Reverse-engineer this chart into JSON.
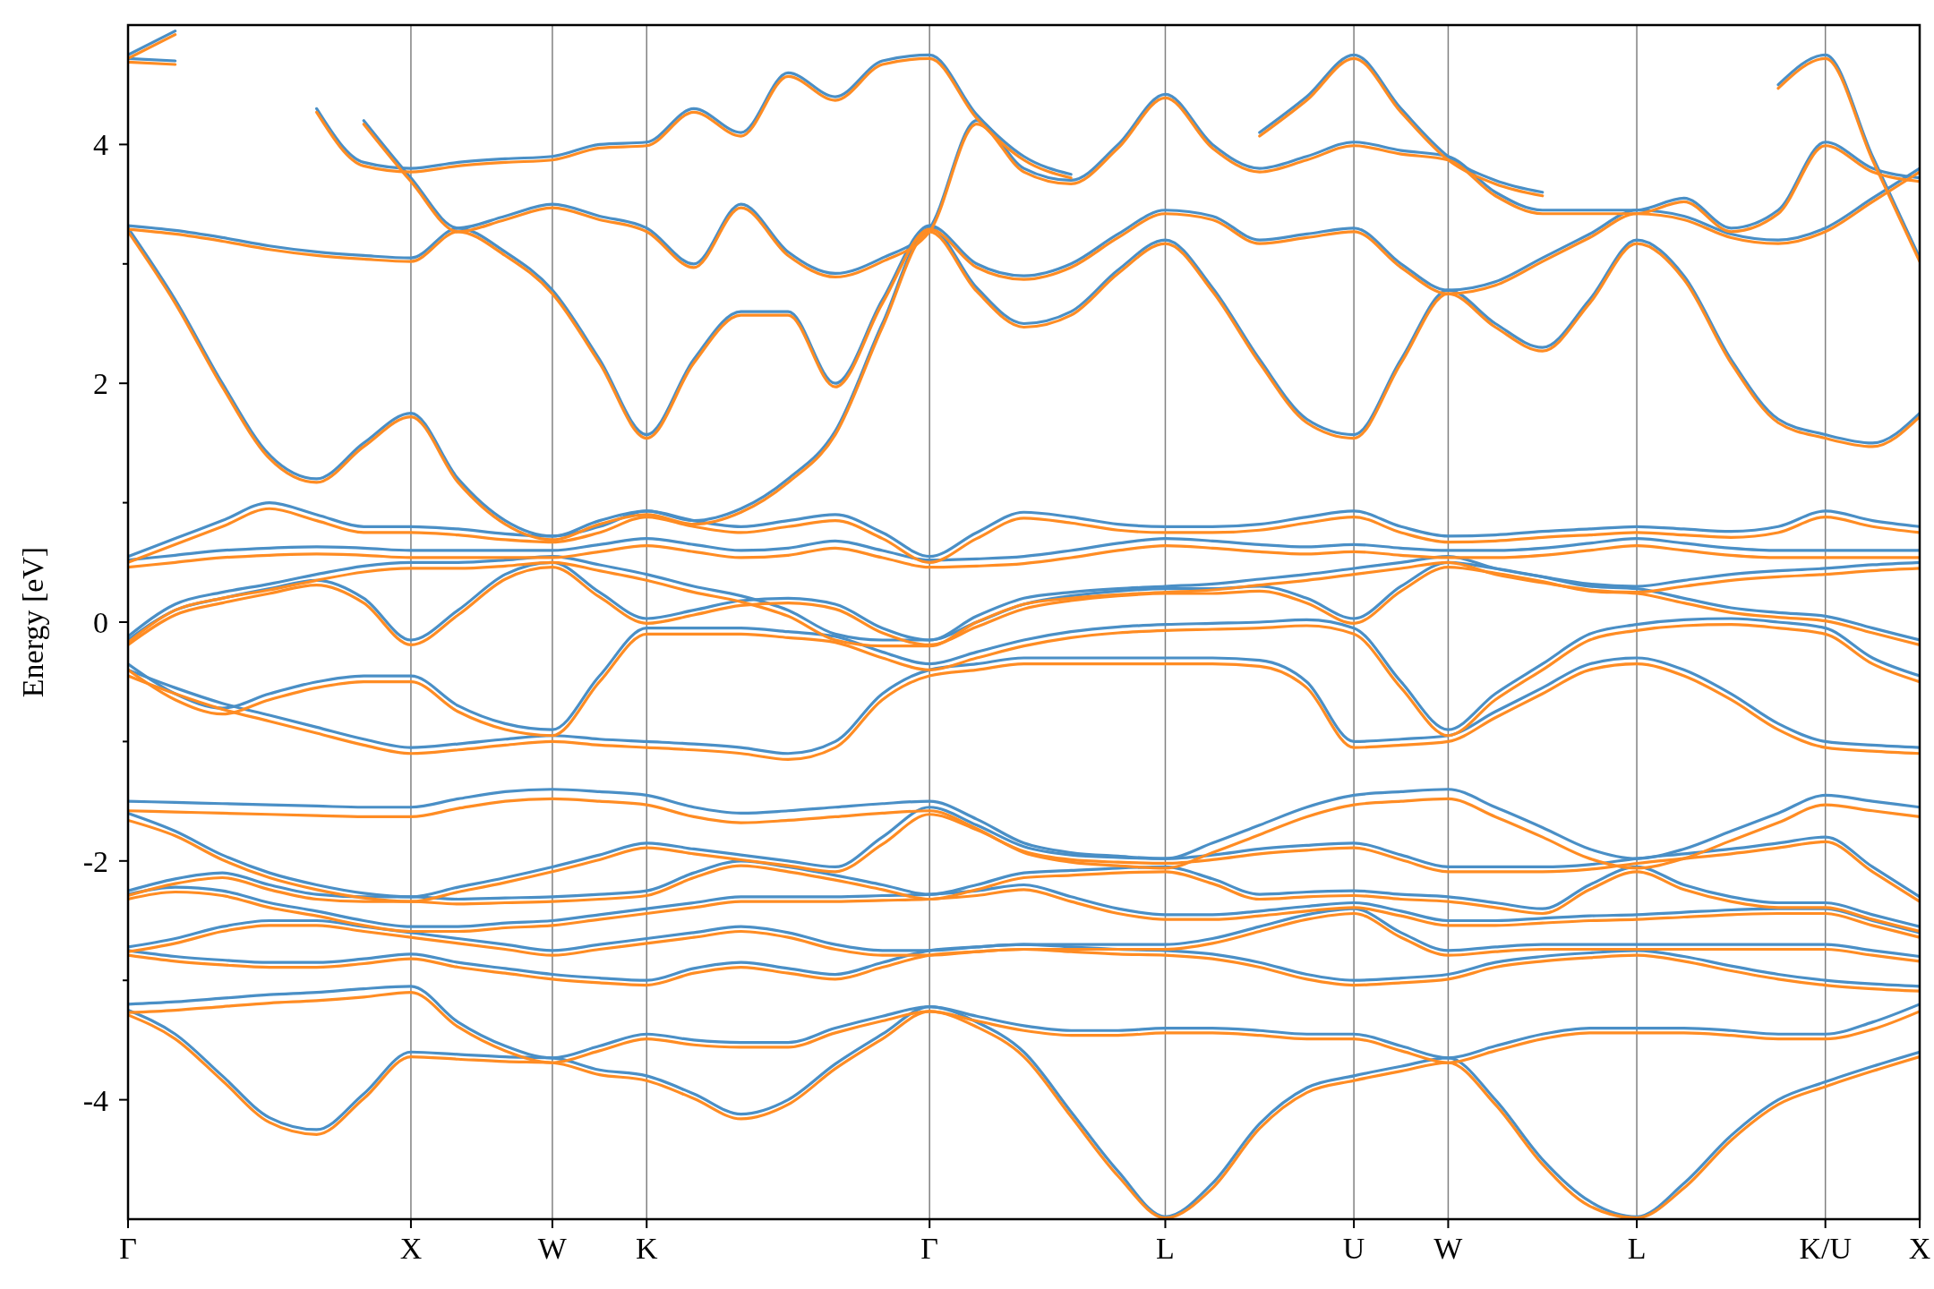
{
  "chart_data": {
    "type": "line",
    "ylabel": "Energy [eV]",
    "categories": [
      "Γ",
      null,
      null,
      null,
      null,
      null,
      "X",
      null,
      null,
      "W",
      null,
      "K",
      null,
      null,
      null,
      null,
      null,
      "Γ",
      null,
      null,
      null,
      null,
      "L",
      null,
      null,
      null,
      "U",
      null,
      "W",
      null,
      null,
      null,
      "L",
      null,
      null,
      null,
      "K/U",
      null,
      "X"
    ],
    "ylim": [
      -5,
      5
    ],
    "yticks": [
      -4,
      {
        "value": -3,
        "label": null
      },
      -2,
      {
        "value": -1,
        "label": null
      },
      0,
      {
        "value": 1,
        "label": null
      },
      2,
      {
        "value": 3,
        "label": null
      },
      4
    ],
    "grid": "x",
    "line_style": "solid",
    "marker": "none",
    "series": [
      {
        "color": "#4a8fc6",
        "values": [
          -3.25,
          -3.45,
          -3.8,
          -4.15,
          -4.25,
          -3.95,
          -3.6,
          -3.62,
          -3.64,
          -3.65,
          -3.75,
          -3.8,
          -3.95,
          -4.12,
          -4.0,
          -3.7,
          -3.45,
          -3.22,
          -3.35,
          -3.6,
          -4.1,
          -4.6,
          -4.98,
          -4.7,
          -4.2,
          -3.9,
          -3.8,
          -3.72,
          -3.65,
          -4.0,
          -4.5,
          -4.85,
          -4.98,
          -4.7,
          -4.3,
          -4.0,
          -3.85,
          -3.72,
          -3.6
        ]
      },
      {
        "color": "#4a8fc6",
        "values": [
          -3.2,
          -3.18,
          -3.15,
          -3.12,
          -3.1,
          -3.07,
          -3.05,
          -3.35,
          -3.55,
          -3.65,
          -3.55,
          -3.45,
          -3.5,
          -3.52,
          -3.52,
          -3.4,
          -3.3,
          -3.22,
          -3.3,
          -3.38,
          -3.42,
          -3.42,
          -3.4,
          -3.4,
          -3.42,
          -3.45,
          -3.45,
          -3.55,
          -3.65,
          -3.55,
          -3.45,
          -3.4,
          -3.4,
          -3.4,
          -3.42,
          -3.45,
          -3.45,
          -3.35,
          -3.2
        ]
      },
      {
        "color": "#4a8fc6",
        "values": [
          -2.75,
          -2.8,
          -2.83,
          -2.85,
          -2.85,
          -2.82,
          -2.78,
          -2.85,
          -2.9,
          -2.95,
          -2.98,
          -3.0,
          -2.9,
          -2.85,
          -2.9,
          -2.95,
          -2.85,
          -2.75,
          -2.72,
          -2.7,
          -2.72,
          -2.74,
          -2.75,
          -2.78,
          -2.85,
          -2.95,
          -3.0,
          -2.98,
          -2.95,
          -2.85,
          -2.8,
          -2.77,
          -2.75,
          -2.8,
          -2.88,
          -2.95,
          -3.0,
          -3.03,
          -3.05
        ]
      },
      {
        "color": "#4a8fc6",
        "values": [
          -2.72,
          -2.65,
          -2.55,
          -2.5,
          -2.5,
          -2.55,
          -2.6,
          -2.65,
          -2.7,
          -2.75,
          -2.7,
          -2.65,
          -2.6,
          -2.55,
          -2.6,
          -2.7,
          -2.75,
          -2.75,
          -2.72,
          -2.7,
          -2.7,
          -2.7,
          -2.7,
          -2.65,
          -2.55,
          -2.45,
          -2.4,
          -2.6,
          -2.75,
          -2.72,
          -2.7,
          -2.7,
          -2.7,
          -2.7,
          -2.7,
          -2.7,
          -2.7,
          -2.75,
          -2.8
        ]
      },
      {
        "color": "#4a8fc6",
        "values": [
          -2.28,
          -2.22,
          -2.25,
          -2.35,
          -2.42,
          -2.5,
          -2.55,
          -2.55,
          -2.52,
          -2.5,
          -2.45,
          -2.4,
          -2.35,
          -2.3,
          -2.3,
          -2.3,
          -2.29,
          -2.28,
          -2.25,
          -2.2,
          -2.3,
          -2.4,
          -2.45,
          -2.45,
          -2.42,
          -2.38,
          -2.35,
          -2.42,
          -2.5,
          -2.5,
          -2.48,
          -2.46,
          -2.45,
          -2.43,
          -2.41,
          -2.4,
          -2.4,
          -2.5,
          -2.6
        ]
      },
      {
        "color": "#4a8fc6",
        "values": [
          -2.25,
          -2.15,
          -2.1,
          -2.2,
          -2.28,
          -2.3,
          -2.3,
          -2.32,
          -2.31,
          -2.3,
          -2.28,
          -2.25,
          -2.1,
          -2.0,
          -2.05,
          -2.12,
          -2.2,
          -2.28,
          -2.2,
          -2.1,
          -2.08,
          -2.06,
          -2.05,
          -2.15,
          -2.28,
          -2.26,
          -2.25,
          -2.28,
          -2.3,
          -2.35,
          -2.4,
          -2.2,
          -2.05,
          -2.2,
          -2.3,
          -2.35,
          -2.35,
          -2.45,
          -2.55
        ]
      },
      {
        "color": "#4a8fc6",
        "values": [
          -1.6,
          -1.75,
          -1.95,
          -2.1,
          -2.2,
          -2.27,
          -2.3,
          -2.22,
          -2.14,
          -2.05,
          -1.95,
          -1.85,
          -1.9,
          -1.95,
          -2.0,
          -2.05,
          -1.8,
          -1.55,
          -1.7,
          -1.88,
          -1.95,
          -1.97,
          -1.98,
          -1.95,
          -1.9,
          -1.87,
          -1.85,
          -1.95,
          -2.05,
          -2.05,
          -2.05,
          -2.03,
          -1.98,
          -1.94,
          -1.9,
          -1.85,
          -1.8,
          -2.05,
          -2.3
        ]
      },
      {
        "color": "#4a8fc6",
        "values": [
          -1.5,
          -1.51,
          -1.52,
          -1.53,
          -1.54,
          -1.55,
          -1.55,
          -1.48,
          -1.42,
          -1.4,
          -1.42,
          -1.45,
          -1.55,
          -1.6,
          -1.58,
          -1.55,
          -1.52,
          -1.5,
          -1.65,
          -1.85,
          -1.93,
          -1.96,
          -1.98,
          -1.85,
          -1.7,
          -1.55,
          -1.45,
          -1.42,
          -1.4,
          -1.55,
          -1.72,
          -1.9,
          -1.98,
          -1.9,
          -1.75,
          -1.6,
          -1.45,
          -1.5,
          -1.55
        ]
      },
      {
        "color": "#4a8fc6",
        "values": [
          -0.4,
          -0.55,
          -0.68,
          -0.78,
          -0.88,
          -0.98,
          -1.05,
          -1.02,
          -0.98,
          -0.95,
          -0.98,
          -1.0,
          -1.02,
          -1.05,
          -1.1,
          -1.0,
          -0.6,
          -0.4,
          -0.35,
          -0.3,
          -0.3,
          -0.3,
          -0.3,
          -0.3,
          -0.32,
          -0.5,
          -1.0,
          -0.98,
          -0.95,
          -0.75,
          -0.55,
          -0.35,
          -0.3,
          -0.4,
          -0.6,
          -0.85,
          -1.0,
          -1.03,
          -1.05
        ]
      },
      {
        "color": "#4a8fc6",
        "values": [
          -0.35,
          -0.6,
          -0.72,
          -0.6,
          -0.5,
          -0.45,
          -0.45,
          -0.7,
          -0.85,
          -0.9,
          -0.45,
          -0.05,
          -0.05,
          -0.05,
          -0.08,
          -0.12,
          -0.25,
          -0.35,
          -0.25,
          -0.15,
          -0.08,
          -0.04,
          -0.02,
          -0.01,
          0.0,
          0.02,
          -0.05,
          -0.5,
          -0.9,
          -0.6,
          -0.35,
          -0.1,
          -0.02,
          0.02,
          0.03,
          0.0,
          -0.05,
          -0.3,
          -0.45
        ]
      },
      {
        "color": "#4a8fc6",
        "values": [
          -0.15,
          0.1,
          0.2,
          0.28,
          0.35,
          0.2,
          -0.15,
          0.1,
          0.4,
          0.5,
          0.25,
          0.03,
          0.1,
          0.18,
          0.2,
          0.15,
          -0.05,
          -0.15,
          0.0,
          0.15,
          0.22,
          0.26,
          0.28,
          0.28,
          0.3,
          0.2,
          0.03,
          0.3,
          0.5,
          0.45,
          0.38,
          0.3,
          0.28,
          0.2,
          0.12,
          0.08,
          0.05,
          -0.05,
          -0.15
        ]
      },
      {
        "color": "#4a8fc6",
        "values": [
          -0.12,
          0.15,
          0.25,
          0.32,
          0.4,
          0.47,
          0.5,
          0.5,
          0.52,
          0.55,
          0.48,
          0.4,
          0.3,
          0.22,
          0.1,
          -0.1,
          -0.15,
          -0.15,
          0.05,
          0.2,
          0.25,
          0.28,
          0.3,
          0.32,
          0.36,
          0.4,
          0.45,
          0.5,
          0.55,
          0.45,
          0.38,
          0.32,
          0.3,
          0.35,
          0.4,
          0.43,
          0.45,
          0.48,
          0.5
        ]
      },
      {
        "color": "#4a8fc6",
        "values": [
          0.52,
          0.56,
          0.6,
          0.62,
          0.63,
          0.62,
          0.6,
          0.6,
          0.6,
          0.6,
          0.65,
          0.7,
          0.65,
          0.6,
          0.62,
          0.68,
          0.6,
          0.52,
          0.53,
          0.55,
          0.6,
          0.66,
          0.7,
          0.68,
          0.65,
          0.63,
          0.65,
          0.62,
          0.6,
          0.6,
          0.62,
          0.66,
          0.7,
          0.66,
          0.62,
          0.6,
          0.6,
          0.6,
          0.6
        ]
      },
      {
        "color": "#4a8fc6",
        "values": [
          0.55,
          0.7,
          0.85,
          1.0,
          0.9,
          0.8,
          0.8,
          0.78,
          0.74,
          0.72,
          0.8,
          0.93,
          0.85,
          0.8,
          0.85,
          0.9,
          0.75,
          0.55,
          0.75,
          0.92,
          0.88,
          0.82,
          0.8,
          0.8,
          0.82,
          0.88,
          0.93,
          0.8,
          0.72,
          0.73,
          0.76,
          0.78,
          0.8,
          0.78,
          0.76,
          0.8,
          0.93,
          0.85,
          0.8
        ]
      },
      {
        "color": "#4a8fc6",
        "values": [
          3.3,
          2.7,
          2.0,
          1.4,
          1.2,
          1.5,
          1.75,
          1.2,
          0.85,
          0.72,
          0.85,
          0.93,
          0.85,
          0.95,
          1.2,
          1.6,
          2.5,
          3.3,
          2.8,
          2.5,
          2.6,
          2.95,
          3.2,
          2.8,
          2.2,
          1.7,
          1.57,
          2.2,
          2.78,
          2.5,
          2.3,
          2.7,
          3.2,
          2.9,
          2.2,
          1.7,
          1.57,
          1.5,
          1.75
        ]
      },
      {
        "color": "#4a8fc6",
        "values": [
          3.32,
          3.28,
          3.22,
          3.15,
          3.1,
          3.07,
          3.05,
          3.3,
          3.1,
          2.78,
          2.2,
          1.57,
          2.2,
          2.6,
          2.6,
          2.0,
          2.7,
          3.32,
          3.0,
          2.9,
          3.0,
          3.25,
          3.45,
          3.4,
          3.2,
          3.25,
          3.3,
          3.0,
          2.78,
          2.85,
          3.05,
          3.25,
          3.45,
          3.4,
          3.25,
          3.2,
          3.3,
          3.55,
          3.8
        ]
      },
      {
        "color": "#4a8fc6",
        "values": [
          4.72,
          4.7,
          null,
          null,
          null,
          4.2,
          3.72,
          3.3,
          3.4,
          3.5,
          3.4,
          3.3,
          3.0,
          3.5,
          3.1,
          2.92,
          3.05,
          3.3,
          4.2,
          3.8,
          3.7,
          4.0,
          4.42,
          4.0,
          3.8,
          3.9,
          4.02,
          3.95,
          3.9,
          3.6,
          3.45,
          3.45,
          3.45,
          3.55,
          3.3,
          3.45,
          4.02,
          3.8,
          3.72
        ]
      },
      {
        "color": "#4a8fc6",
        "values": [
          4.75,
          4.95,
          null,
          null,
          4.3,
          3.85,
          3.8,
          3.85,
          3.88,
          3.9,
          4.0,
          4.02,
          4.3,
          4.1,
          4.6,
          4.4,
          4.7,
          4.75,
          4.25,
          3.9,
          3.75,
          null,
          null,
          null,
          4.1,
          4.4,
          4.75,
          4.3,
          3.9,
          3.7,
          3.6,
          null,
          null,
          null,
          null,
          4.5,
          4.75,
          3.9,
          3.05
        ]
      },
      {
        "color": "#ff8c23",
        "values": [
          -3.29,
          -3.49,
          -3.84,
          -4.19,
          -4.29,
          -3.99,
          -3.64,
          -3.66,
          -3.68,
          -3.69,
          -3.79,
          -3.84,
          -3.99,
          -4.16,
          -4.04,
          -3.74,
          -3.49,
          -3.26,
          -3.39,
          -3.64,
          -4.14,
          -4.64,
          -4.99,
          -4.74,
          -4.24,
          -3.94,
          -3.84,
          -3.76,
          -3.69,
          -4.04,
          -4.54,
          -4.89,
          -4.99,
          -4.74,
          -4.34,
          -4.04,
          -3.89,
          -3.76,
          -3.64
        ]
      },
      {
        "color": "#ff8c23",
        "values": [
          -3.27,
          -3.25,
          -3.22,
          -3.19,
          -3.17,
          -3.14,
          -3.1,
          -3.39,
          -3.59,
          -3.69,
          -3.59,
          -3.49,
          -3.54,
          -3.56,
          -3.56,
          -3.44,
          -3.34,
          -3.26,
          -3.34,
          -3.42,
          -3.46,
          -3.46,
          -3.44,
          -3.44,
          -3.46,
          -3.49,
          -3.49,
          -3.59,
          -3.69,
          -3.59,
          -3.49,
          -3.44,
          -3.44,
          -3.44,
          -3.46,
          -3.49,
          -3.49,
          -3.41,
          -3.26
        ]
      },
      {
        "color": "#ff8c23",
        "values": [
          -2.79,
          -2.84,
          -2.87,
          -2.89,
          -2.89,
          -2.86,
          -2.82,
          -2.89,
          -2.94,
          -2.99,
          -3.02,
          -3.04,
          -2.94,
          -2.89,
          -2.94,
          -2.99,
          -2.89,
          -2.79,
          -2.76,
          -2.74,
          -2.76,
          -2.78,
          -2.79,
          -2.82,
          -2.89,
          -2.99,
          -3.04,
          -3.02,
          -2.99,
          -2.89,
          -2.84,
          -2.81,
          -2.79,
          -2.84,
          -2.92,
          -2.99,
          -3.04,
          -3.07,
          -3.09
        ]
      },
      {
        "color": "#ff8c23",
        "values": [
          -2.76,
          -2.69,
          -2.59,
          -2.54,
          -2.54,
          -2.59,
          -2.64,
          -2.69,
          -2.74,
          -2.79,
          -2.74,
          -2.69,
          -2.64,
          -2.59,
          -2.64,
          -2.74,
          -2.79,
          -2.79,
          -2.76,
          -2.74,
          -2.74,
          -2.74,
          -2.74,
          -2.69,
          -2.59,
          -2.49,
          -2.44,
          -2.64,
          -2.79,
          -2.76,
          -2.74,
          -2.74,
          -2.74,
          -2.74,
          -2.74,
          -2.74,
          -2.74,
          -2.79,
          -2.84
        ]
      },
      {
        "color": "#ff8c23",
        "values": [
          -2.32,
          -2.26,
          -2.29,
          -2.39,
          -2.46,
          -2.54,
          -2.59,
          -2.59,
          -2.56,
          -2.54,
          -2.49,
          -2.44,
          -2.39,
          -2.34,
          -2.34,
          -2.34,
          -2.33,
          -2.32,
          -2.29,
          -2.24,
          -2.34,
          -2.44,
          -2.49,
          -2.49,
          -2.46,
          -2.42,
          -2.39,
          -2.46,
          -2.54,
          -2.54,
          -2.52,
          -2.5,
          -2.49,
          -2.47,
          -2.45,
          -2.44,
          -2.44,
          -2.54,
          -2.64
        ]
      },
      {
        "color": "#ff8c23",
        "values": [
          -2.29,
          -2.19,
          -2.14,
          -2.24,
          -2.32,
          -2.34,
          -2.34,
          -2.36,
          -2.35,
          -2.34,
          -2.32,
          -2.29,
          -2.14,
          -2.04,
          -2.09,
          -2.16,
          -2.24,
          -2.32,
          -2.24,
          -2.14,
          -2.12,
          -2.1,
          -2.09,
          -2.19,
          -2.32,
          -2.3,
          -2.29,
          -2.32,
          -2.34,
          -2.39,
          -2.44,
          -2.24,
          -2.09,
          -2.24,
          -2.34,
          -2.39,
          -2.39,
          -2.49,
          -2.59
        ]
      },
      {
        "color": "#ff8c23",
        "values": [
          -1.66,
          -1.79,
          -1.99,
          -2.14,
          -2.24,
          -2.31,
          -2.34,
          -2.26,
          -2.18,
          -2.09,
          -1.99,
          -1.89,
          -1.94,
          -1.99,
          -2.04,
          -2.09,
          -1.86,
          -1.61,
          -1.74,
          -1.92,
          -1.99,
          -2.01,
          -2.02,
          -1.99,
          -1.94,
          -1.91,
          -1.89,
          -1.99,
          -2.09,
          -2.09,
          -2.09,
          -2.07,
          -2.02,
          -1.98,
          -1.94,
          -1.89,
          -1.84,
          -2.09,
          -2.34
        ]
      },
      {
        "color": "#ff8c23",
        "values": [
          -1.58,
          -1.59,
          -1.6,
          -1.61,
          -1.62,
          -1.63,
          -1.63,
          -1.56,
          -1.5,
          -1.48,
          -1.5,
          -1.53,
          -1.63,
          -1.68,
          -1.66,
          -1.63,
          -1.6,
          -1.58,
          -1.73,
          -1.93,
          -2.01,
          -2.04,
          -2.06,
          -1.93,
          -1.78,
          -1.63,
          -1.53,
          -1.5,
          -1.48,
          -1.63,
          -1.8,
          -1.98,
          -2.06,
          -1.98,
          -1.83,
          -1.68,
          -1.53,
          -1.58,
          -1.63
        ]
      },
      {
        "color": "#ff8c23",
        "values": [
          -0.45,
          -0.6,
          -0.73,
          -0.83,
          -0.93,
          -1.03,
          -1.1,
          -1.07,
          -1.03,
          -1.0,
          -1.03,
          -1.05,
          -1.07,
          -1.1,
          -1.15,
          -1.05,
          -0.65,
          -0.45,
          -0.4,
          -0.35,
          -0.35,
          -0.35,
          -0.35,
          -0.35,
          -0.37,
          -0.55,
          -1.05,
          -1.03,
          -1.0,
          -0.8,
          -0.6,
          -0.4,
          -0.35,
          -0.45,
          -0.65,
          -0.9,
          -1.05,
          -1.08,
          -1.1
        ]
      },
      {
        "color": "#ff8c23",
        "values": [
          -0.4,
          -0.65,
          -0.77,
          -0.65,
          -0.55,
          -0.5,
          -0.5,
          -0.75,
          -0.9,
          -0.95,
          -0.5,
          -0.1,
          -0.1,
          -0.1,
          -0.13,
          -0.17,
          -0.3,
          -0.4,
          -0.3,
          -0.2,
          -0.13,
          -0.09,
          -0.07,
          -0.06,
          -0.05,
          -0.03,
          -0.1,
          -0.55,
          -0.95,
          -0.65,
          -0.4,
          -0.15,
          -0.07,
          -0.03,
          -0.02,
          -0.05,
          -0.1,
          -0.35,
          -0.5
        ]
      },
      {
        "color": "#ff8c23",
        "values": [
          -0.19,
          0.06,
          0.16,
          0.24,
          0.31,
          0.16,
          -0.19,
          0.06,
          0.36,
          0.46,
          0.21,
          -0.01,
          0.06,
          0.14,
          0.16,
          0.11,
          -0.09,
          -0.19,
          -0.04,
          0.11,
          0.18,
          0.22,
          0.24,
          0.24,
          0.26,
          0.16,
          -0.01,
          0.26,
          0.46,
          0.41,
          0.34,
          0.26,
          0.24,
          0.16,
          0.08,
          0.04,
          0.01,
          -0.09,
          -0.19
        ]
      },
      {
        "color": "#ff8c23",
        "values": [
          -0.17,
          0.1,
          0.2,
          0.27,
          0.35,
          0.42,
          0.45,
          0.45,
          0.47,
          0.5,
          0.43,
          0.35,
          0.25,
          0.17,
          0.05,
          -0.15,
          -0.2,
          -0.2,
          0.0,
          0.15,
          0.2,
          0.23,
          0.25,
          0.27,
          0.31,
          0.35,
          0.4,
          0.45,
          0.5,
          0.4,
          0.33,
          0.27,
          0.25,
          0.3,
          0.35,
          0.38,
          0.4,
          0.43,
          0.45
        ]
      },
      {
        "color": "#ff8c23",
        "values": [
          0.46,
          0.5,
          0.54,
          0.56,
          0.57,
          0.56,
          0.54,
          0.54,
          0.54,
          0.54,
          0.59,
          0.64,
          0.59,
          0.54,
          0.56,
          0.62,
          0.54,
          0.46,
          0.47,
          0.49,
          0.54,
          0.6,
          0.64,
          0.62,
          0.59,
          0.57,
          0.59,
          0.56,
          0.54,
          0.54,
          0.56,
          0.6,
          0.64,
          0.6,
          0.56,
          0.54,
          0.54,
          0.54,
          0.54
        ]
      },
      {
        "color": "#ff8c23",
        "values": [
          0.5,
          0.65,
          0.8,
          0.95,
          0.85,
          0.75,
          0.75,
          0.73,
          0.69,
          0.67,
          0.75,
          0.88,
          0.8,
          0.75,
          0.8,
          0.85,
          0.7,
          0.5,
          0.7,
          0.87,
          0.83,
          0.77,
          0.75,
          0.75,
          0.77,
          0.83,
          0.88,
          0.75,
          0.67,
          0.68,
          0.71,
          0.73,
          0.75,
          0.73,
          0.71,
          0.75,
          0.88,
          0.8,
          0.75
        ]
      },
      {
        "color": "#ff8c23",
        "values": [
          3.27,
          2.67,
          1.97,
          1.37,
          1.17,
          1.47,
          1.72,
          1.17,
          0.82,
          0.69,
          0.82,
          0.9,
          0.82,
          0.92,
          1.17,
          1.57,
          2.47,
          3.27,
          2.77,
          2.47,
          2.57,
          2.92,
          3.17,
          2.77,
          2.17,
          1.67,
          1.54,
          2.17,
          2.75,
          2.47,
          2.27,
          2.67,
          3.17,
          2.87,
          2.17,
          1.67,
          1.54,
          1.47,
          1.72
        ]
      },
      {
        "color": "#ff8c23",
        "values": [
          3.29,
          3.25,
          3.19,
          3.12,
          3.07,
          3.04,
          3.02,
          3.27,
          3.07,
          2.75,
          2.17,
          1.54,
          2.17,
          2.57,
          2.57,
          1.97,
          2.67,
          3.29,
          2.97,
          2.87,
          2.97,
          3.22,
          3.42,
          3.37,
          3.17,
          3.22,
          3.27,
          2.97,
          2.75,
          2.82,
          3.02,
          3.22,
          3.42,
          3.37,
          3.22,
          3.17,
          3.27,
          3.52,
          3.77
        ]
      },
      {
        "color": "#ff8c23",
        "values": [
          4.69,
          4.67,
          null,
          null,
          null,
          4.17,
          3.69,
          3.27,
          3.37,
          3.47,
          3.37,
          3.27,
          2.97,
          3.47,
          3.07,
          2.89,
          3.02,
          3.27,
          4.17,
          3.77,
          3.67,
          3.97,
          4.39,
          3.97,
          3.77,
          3.87,
          3.99,
          3.92,
          3.87,
          3.57,
          3.42,
          3.42,
          3.42,
          3.52,
          3.27,
          3.42,
          3.99,
          3.77,
          3.69
        ]
      },
      {
        "color": "#ff8c23",
        "values": [
          4.72,
          4.92,
          null,
          null,
          4.27,
          3.82,
          3.77,
          3.82,
          3.85,
          3.87,
          3.97,
          3.99,
          4.27,
          4.07,
          4.57,
          4.37,
          4.67,
          4.72,
          4.22,
          3.87,
          3.72,
          null,
          null,
          null,
          4.07,
          4.37,
          4.72,
          4.27,
          3.87,
          3.67,
          3.57,
          null,
          null,
          null,
          null,
          4.47,
          4.72,
          3.87,
          3.02
        ]
      }
    ]
  }
}
